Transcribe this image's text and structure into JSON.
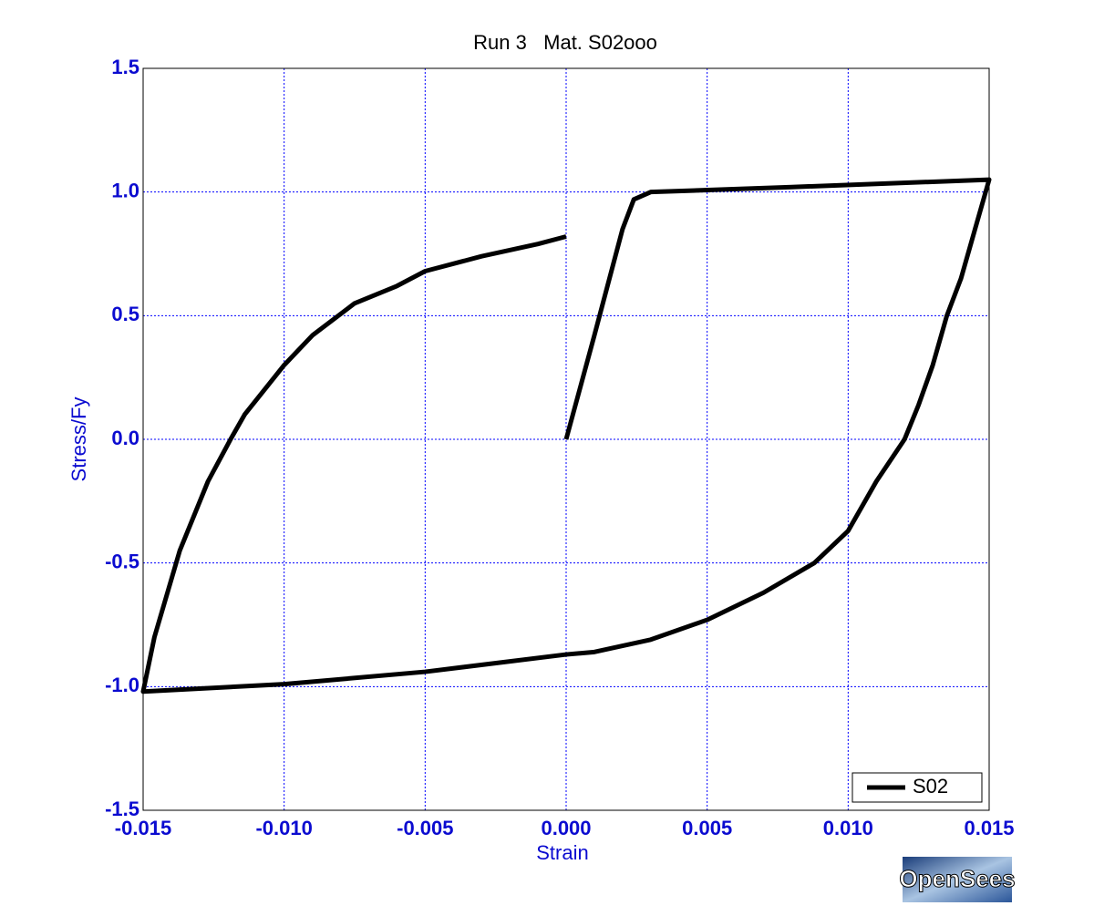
{
  "chart_data": {
    "type": "line",
    "title": "Run 3   Mat. S02ooo",
    "x_label": "Strain",
    "y_label": "Stress/Fy",
    "x": [
      0,
      0.001,
      0.002,
      0.0024,
      0.003,
      0.008,
      0.015,
      0.0145,
      0.014,
      0.0135,
      0.013,
      0.0125,
      0.012,
      0.011,
      0.01,
      0.0088,
      0.007,
      0.005,
      0.003,
      0.001,
      0,
      -0.005,
      -0.01,
      -0.015,
      -0.0146,
      -0.0137,
      -0.0127,
      -0.0119,
      -0.0114,
      -0.01,
      -0.009,
      -0.0075,
      -0.006,
      -0.005,
      -0.003,
      -0.001,
      0
    ],
    "series": [
      {
        "name": "S02",
        "color": "#000000",
        "values": [
          0,
          0.42,
          0.85,
          0.97,
          1.0,
          1.02,
          1.05,
          0.85,
          0.65,
          0.5,
          0.3,
          0.14,
          0,
          -0.17,
          -0.37,
          -0.5,
          -0.62,
          -0.73,
          -0.81,
          -0.86,
          -0.87,
          -0.94,
          -0.99,
          -1.02,
          -0.8,
          -0.45,
          -0.17,
          0,
          0.1,
          0.3,
          0.42,
          0.55,
          0.62,
          0.68,
          0.74,
          0.79,
          0.82
        ]
      }
    ],
    "xlim": [
      -0.015,
      0.015
    ],
    "xticks": [
      {
        "value": -0.015,
        "label": "-0.015"
      },
      {
        "value": -0.01,
        "label": "-0.010"
      },
      {
        "value": -0.005,
        "label": "-0.005"
      },
      {
        "value": 0,
        "label": "0.000"
      },
      {
        "value": 0.005,
        "label": "0.005"
      },
      {
        "value": 0.01,
        "label": "0.010"
      },
      {
        "value": 0.015,
        "label": "0.015"
      }
    ],
    "ylim": [
      -1.5,
      1.5
    ],
    "yticks": [
      -1.5,
      {
        "value": -1,
        "label": "-1.0"
      },
      -0.5,
      {
        "value": 0,
        "label": "0.0"
      },
      0.5,
      {
        "value": 1,
        "label": "1.0"
      },
      1.5
    ],
    "grid": true,
    "legend": "lower right",
    "annotation": "OpenSees"
  }
}
